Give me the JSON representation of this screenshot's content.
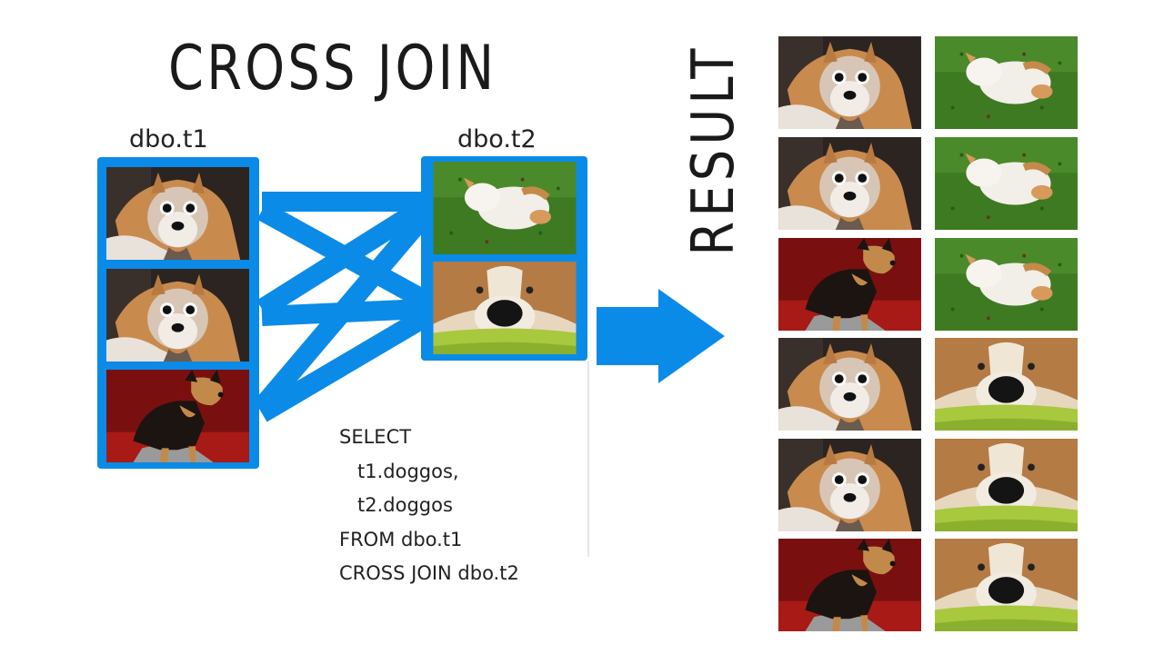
{
  "title": "CROSS JOIN",
  "result_label": "RESULT",
  "tables": {
    "t1": {
      "name": "dbo.t1",
      "rows": [
        "corgi-wide-eyed",
        "corgi-wide-eyed",
        "tricolor-puppy"
      ]
    },
    "t2": {
      "name": "dbo.t2",
      "rows": [
        "corgi-rolling-on-grass",
        "corgi-face-closeup"
      ]
    }
  },
  "sql": {
    "lines": [
      "SELECT",
      "   t1.doggos,",
      "   t2.doggos",
      "FROM dbo.t1",
      "CROSS JOIN dbo.t2"
    ]
  },
  "result_rows": [
    [
      "corgi-wide-eyed",
      "corgi-rolling-on-grass"
    ],
    [
      "corgi-wide-eyed",
      "corgi-rolling-on-grass"
    ],
    [
      "tricolor-puppy",
      "corgi-rolling-on-grass"
    ],
    [
      "corgi-wide-eyed",
      "corgi-face-closeup"
    ],
    [
      "corgi-wide-eyed",
      "corgi-face-closeup"
    ],
    [
      "tricolor-puppy",
      "corgi-face-closeup"
    ]
  ],
  "colors": {
    "accent": "#0b8be8",
    "text": "#1a1a1a"
  }
}
